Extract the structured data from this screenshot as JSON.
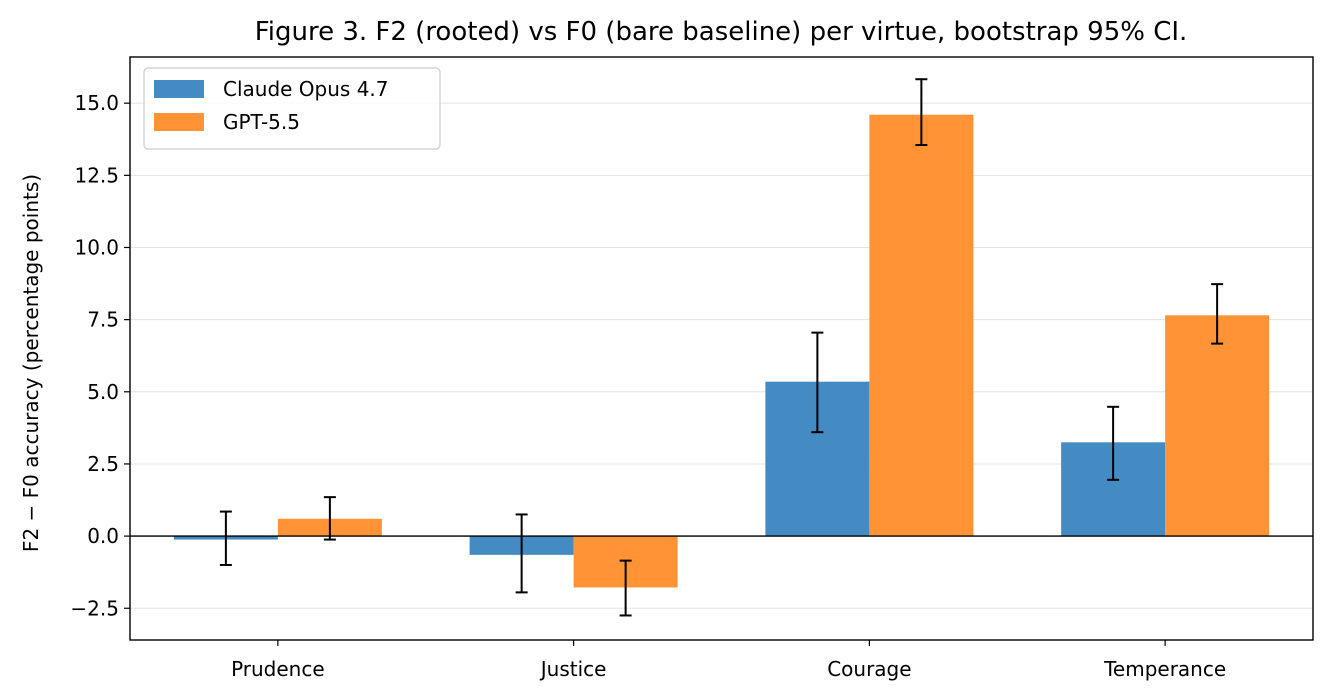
{
  "chart_data": {
    "type": "bar",
    "title": "Figure 3. F2 (rooted) vs F0 (bare baseline) per virtue, bootstrap 95% CI.",
    "xlabel": "",
    "ylabel": "F2 − F0 accuracy (percentage points)",
    "categories": [
      "Prudence",
      "Justice",
      "Courage",
      "Temperance"
    ],
    "ylim": [
      -3.6,
      16.6
    ],
    "yticks": [
      -2.5,
      0.0,
      2.5,
      5.0,
      7.5,
      10.0,
      12.5,
      15.0
    ],
    "ytick_labels": [
      "−2.5",
      "0.0",
      "2.5",
      "5.0",
      "7.5",
      "10.0",
      "12.5",
      "15.0"
    ],
    "grid": "horizontal",
    "zero_line": true,
    "legend_position": "top-left",
    "series": [
      {
        "name": "Claude Opus 4.7",
        "color": "#438bc2",
        "values": [
          -0.12,
          -0.65,
          5.35,
          3.25
        ],
        "ci_low": [
          -1.0,
          -1.95,
          3.6,
          1.95
        ],
        "ci_high": [
          0.85,
          0.75,
          7.05,
          4.48
        ]
      },
      {
        "name": "GPT-5.5",
        "color": "#ff9336",
        "values": [
          0.6,
          -1.78,
          14.6,
          7.65
        ],
        "ci_low": [
          -0.12,
          -2.75,
          13.55,
          6.67
        ],
        "ci_high": [
          1.35,
          -0.85,
          15.83,
          8.73
        ]
      }
    ]
  }
}
